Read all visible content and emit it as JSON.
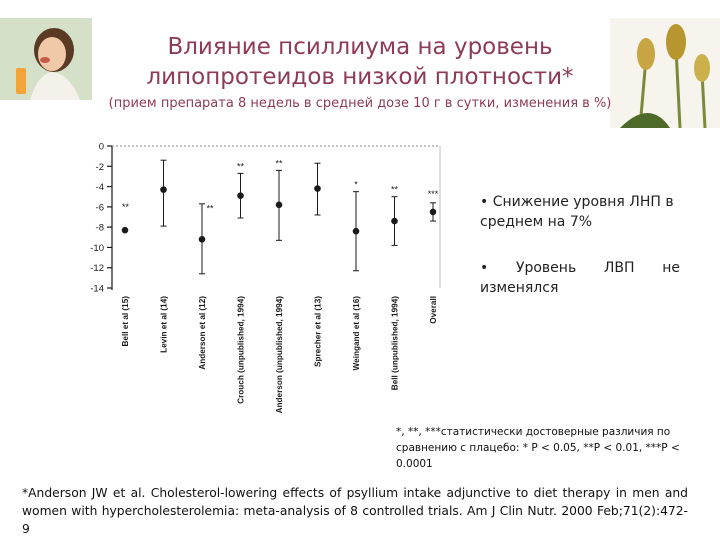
{
  "title_line1": "Влияние псиллиума на уровень",
  "title_line2": "липопротеидов  низкой плотности*",
  "subtitle": "(прием препарата 8 недель в средней дозе 10 г в сутки, изменения в %)",
  "photos": {
    "woman": "woman-eating-photo",
    "plant": "psyllium-plant-photo"
  },
  "bullets": [
    "• Снижение уровня ЛНП в среднем на 7%",
    "•  Уровень  ЛВП  не изменялся"
  ],
  "footnote": "*, **, ***статистически достоверные различия по сравнению с плацебо: * P < 0.05, **P < 0.01, ***P < 0.0001",
  "reference": "*Anderson JW et al. Cholesterol-lowering effects of psyllium intake adjunctive to diet therapy in men and women with hypercholesterolemia: meta-analysis of 8 controlled trials.  Am J Clin Nutr. 2000 Feb;71(2):472-9",
  "colors": {
    "title": "#8e3a59",
    "marker": "#1a1a1a"
  },
  "chart_data": {
    "type": "scatter",
    "error_bars": true,
    "ylim": [
      -14,
      0
    ],
    "yticks": [
      "0",
      "-2",
      "-4",
      "-6",
      "-8",
      "-10",
      "-12",
      "-14"
    ],
    "ytick_values": [
      0,
      -2,
      -4,
      -6,
      -8,
      -10,
      -12,
      -14
    ],
    "grid": false,
    "categories": [
      "Bell et al (15)",
      "Levin et al (14)",
      "Anderson et al (12)",
      "Crouch (unpublished, 1994)",
      "Anderson (unpublished, 1994)",
      "Sprecher et al (13)",
      "Weingand et al (16)",
      "Bell (unpublished, 1994)",
      "Overall"
    ],
    "values": [
      -8.3,
      -4.3,
      -9.2,
      -4.9,
      -5.8,
      -4.2,
      -8.4,
      -7.4,
      -6.5
    ],
    "error_low": [
      -8.3,
      -7.9,
      -12.6,
      -7.1,
      -9.3,
      -6.8,
      -12.3,
      -9.8,
      -7.4
    ],
    "error_high": [
      -8.3,
      -1.4,
      -5.7,
      -2.7,
      -2.4,
      -1.7,
      -4.5,
      -5.0,
      -5.6
    ],
    "significance": [
      "**",
      "",
      "**",
      "**",
      "**",
      "",
      "*",
      "**",
      "***"
    ]
  }
}
